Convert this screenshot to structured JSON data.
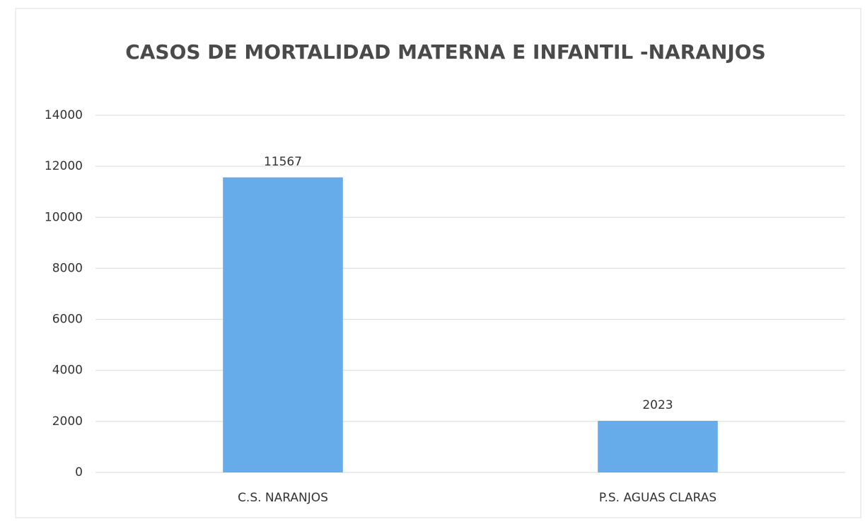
{
  "chart_data": {
    "type": "bar",
    "title": "CASOS DE MORTALIDAD MATERNA E INFANTIL -NARANJOS",
    "categories": [
      "C.S.  NARANJOS",
      "P.S. AGUAS CLARAS"
    ],
    "values": [
      11567,
      2023
    ],
    "color": "#67acea",
    "ylim": [
      0,
      14000
    ],
    "yticks": [
      0,
      2000,
      4000,
      6000,
      8000,
      10000,
      12000,
      14000
    ],
    "grid": true
  }
}
